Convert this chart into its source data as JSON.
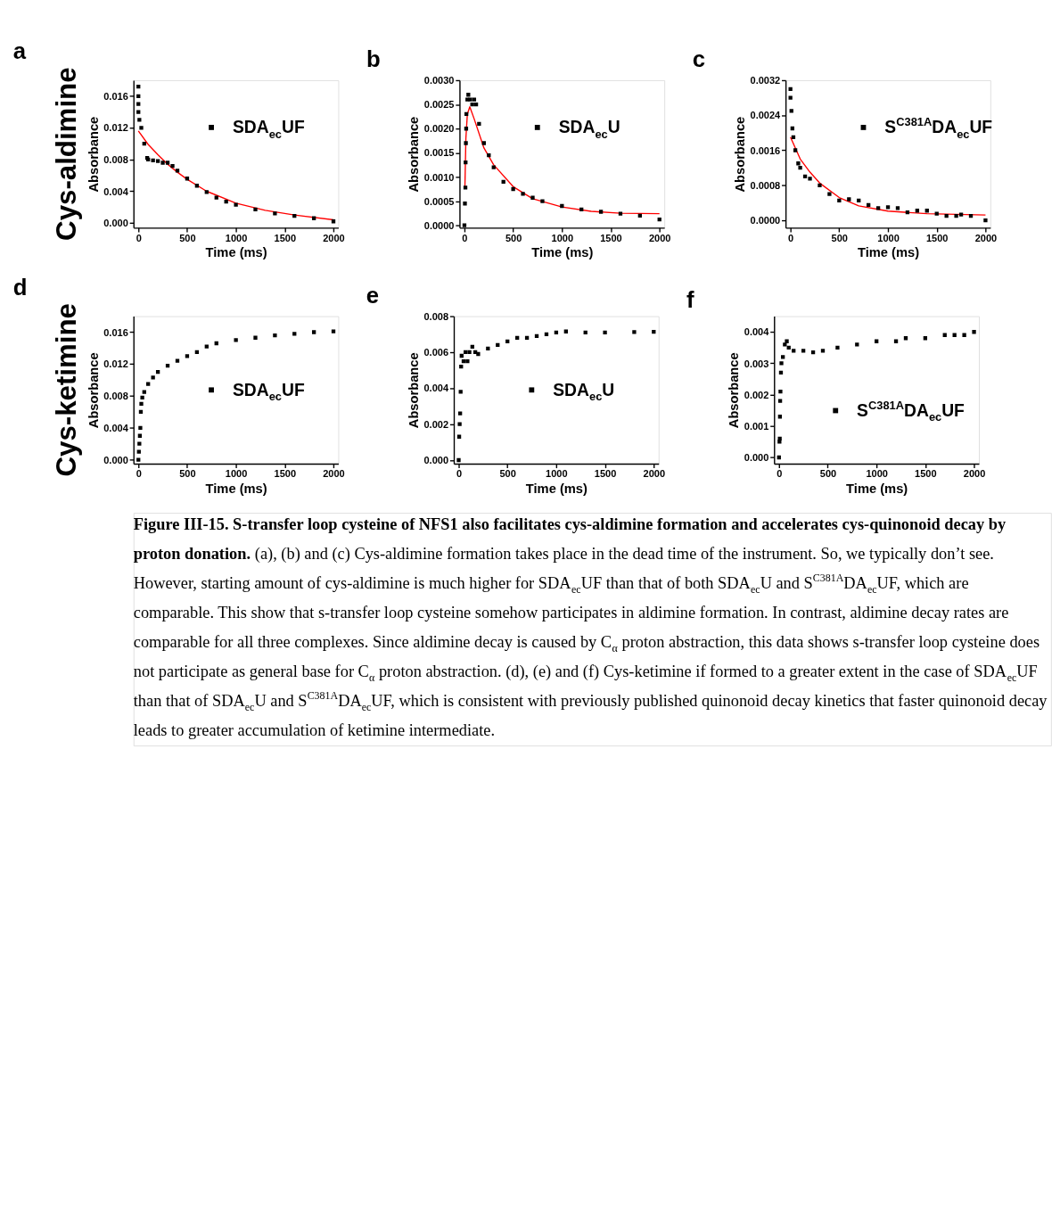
{
  "chart_data": [
    {
      "type": "scatter",
      "title": "a",
      "xlabel": "Time (ms)",
      "ylabel": "Absorbance",
      "xlim": [
        -50,
        2050
      ],
      "ylim": [
        -0.0006,
        0.018
      ],
      "xticks": [
        0,
        500,
        1000,
        1500,
        2000
      ],
      "yticks": [
        {
          "value": 0,
          "label": "0.000"
        },
        {
          "value": 0.004,
          "label": "0.004"
        },
        {
          "value": 0.008,
          "label": "0.008"
        },
        {
          "value": 0.012,
          "label": "0.012"
        },
        {
          "value": 0.016,
          "label": "0.016"
        }
      ],
      "grid": false,
      "legend": "top right",
      "marker": "square",
      "annotations": [
        "Cys-aldimine"
      ],
      "series": [
        {
          "name": "SDA$_{ec}$UF",
          "color": "#000000",
          "x": [
            0,
            0,
            0,
            0,
            10,
            30,
            60,
            90,
            100,
            150,
            200,
            250,
            300,
            350,
            400,
            500,
            600,
            700,
            800,
            900,
            1000,
            1200,
            1400,
            1600,
            1800,
            2000
          ],
          "values": [
            0.0172,
            0.016,
            0.015,
            0.014,
            0.013,
            0.012,
            0.01,
            0.0082,
            0.008,
            0.0079,
            0.0078,
            0.0076,
            0.0076,
            0.0072,
            0.0066,
            0.0056,
            0.0047,
            0.0039,
            0.0032,
            0.0027,
            0.0023,
            0.0017,
            0.0012,
            0.0009,
            0.0006,
            0.0002
          ]
        },
        {
          "type": "line",
          "marker": "none",
          "color": "#ff0000",
          "x": [
            0,
            100,
            200,
            300,
            400,
            500,
            700,
            1000,
            1300,
            1600,
            2000
          ],
          "values": [
            0.0116,
            0.0099,
            0.0086,
            0.0074,
            0.0064,
            0.0055,
            0.004,
            0.0025,
            0.0016,
            0.001,
            0.0004
          ]
        }
      ]
    },
    {
      "type": "scatter",
      "title": "b",
      "xlabel": "Time (ms)",
      "ylabel": "Absorbance",
      "xlim": [
        -50,
        2050
      ],
      "ylim": [
        -5e-05,
        0.003
      ],
      "xticks": [
        0,
        500,
        1000,
        1500,
        2000
      ],
      "yticks": [
        {
          "value": 0,
          "label": "0.0000"
        },
        {
          "value": 0.0005,
          "label": "0.0005"
        },
        {
          "value": 0.001,
          "label": "0.0010"
        },
        {
          "value": 0.0015,
          "label": "0.0015"
        },
        {
          "value": 0.002,
          "label": "0.0020"
        },
        {
          "value": 0.0025,
          "label": "0.0025"
        },
        {
          "value": 0.003,
          "label": "0.0030"
        }
      ],
      "grid": false,
      "legend": "top right",
      "marker": "square",
      "series": [
        {
          "name": "SDA$_{ec}$U",
          "color": "#000000",
          "x": [
            0,
            5,
            10,
            12,
            15,
            18,
            20,
            30,
            40,
            60,
            80,
            100,
            120,
            150,
            200,
            250,
            300,
            400,
            500,
            600,
            700,
            800,
            1000,
            1200,
            1400,
            1600,
            1800,
            2000
          ],
          "values": [
            0,
            0.00045,
            0.00078,
            0.0013,
            0.0017,
            0.002,
            0.0023,
            0.0026,
            0.0027,
            0.0026,
            0.0025,
            0.0026,
            0.0025,
            0.0021,
            0.0017,
            0.00145,
            0.0012,
            0.0009,
            0.00075,
            0.00065,
            0.00057,
            0.0005,
            0.0004,
            0.00033,
            0.00028,
            0.00024,
            0.0002,
            0.00012
          ]
        },
        {
          "type": "line",
          "marker": "none",
          "color": "#ff0000",
          "x": [
            5,
            15,
            30,
            55,
            100,
            200,
            300,
            500,
            700,
            1000,
            1300,
            1600,
            2000
          ],
          "values": [
            0.0008,
            0.0018,
            0.0023,
            0.00245,
            0.0022,
            0.0016,
            0.00125,
            0.0008,
            0.00055,
            0.00038,
            0.00029,
            0.00025,
            0.00024
          ]
        }
      ]
    },
    {
      "type": "scatter",
      "title": "c",
      "xlabel": "Time (ms)",
      "ylabel": "Absorbance",
      "xlim": [
        -50,
        2050
      ],
      "ylim": [
        -0.00017,
        0.0032
      ],
      "xticks": [
        0,
        500,
        1000,
        1500,
        2000
      ],
      "yticks": [
        {
          "value": 0,
          "label": "0.0000"
        },
        {
          "value": 0.0008,
          "label": "0.0008"
        },
        {
          "value": 0.0016,
          "label": "0.0016"
        },
        {
          "value": 0.0024,
          "label": "0.0024"
        },
        {
          "value": 0.0032,
          "label": "0.0032"
        }
      ],
      "grid": false,
      "legend": "top right",
      "marker": "square",
      "series": [
        {
          "name": "S$^{C381A}$DA$_{ec}$UF",
          "color": "#000000",
          "x": [
            0,
            0,
            10,
            20,
            30,
            50,
            80,
            100,
            150,
            200,
            300,
            400,
            500,
            600,
            700,
            800,
            900,
            1000,
            1100,
            1200,
            1300,
            1400,
            1500,
            1600,
            1700,
            1750,
            1850,
            2000
          ],
          "values": [
            0.003,
            0.0028,
            0.0025,
            0.0021,
            0.0019,
            0.0016,
            0.0013,
            0.0012,
            0.001,
            0.00095,
            0.0008,
            0.0006,
            0.00045,
            0.00048,
            0.00045,
            0.00035,
            0.00028,
            0.0003,
            0.00028,
            0.00018,
            0.00022,
            0.00022,
            0.00015,
            0.0001,
            0.0001,
            0.00013,
            0.0001,
            0
          ]
        },
        {
          "type": "line",
          "marker": "none",
          "color": "#ff0000",
          "x": [
            0,
            100,
            200,
            300,
            500,
            700,
            1000,
            1400,
            2000
          ],
          "values": [
            0.0019,
            0.0014,
            0.0011,
            0.00085,
            0.00052,
            0.00033,
            0.00021,
            0.00015,
            0.00012
          ]
        }
      ]
    },
    {
      "type": "scatter",
      "title": "d",
      "xlabel": "Time (ms)",
      "ylabel": "Absorbance",
      "xlim": [
        -50,
        2050
      ],
      "ylim": [
        -0.0005,
        0.018
      ],
      "xticks": [
        0,
        500,
        1000,
        1500,
        2000
      ],
      "yticks": [
        {
          "value": 0,
          "label": "0.000"
        },
        {
          "value": 0.004,
          "label": "0.004"
        },
        {
          "value": 0.008,
          "label": "0.008"
        },
        {
          "value": 0.012,
          "label": "0.012"
        },
        {
          "value": 0.016,
          "label": "0.016"
        }
      ],
      "grid": false,
      "legend": "right",
      "marker": "square",
      "annotations": [
        "Cys-ketimine"
      ],
      "series": [
        {
          "name": "SDA$_{ec}$UF",
          "color": "#000000",
          "x": [
            0,
            5,
            10,
            15,
            20,
            25,
            30,
            40,
            60,
            100,
            150,
            200,
            300,
            400,
            500,
            600,
            700,
            800,
            1000,
            1200,
            1400,
            1600,
            1800,
            2000
          ],
          "values": [
            0,
            0.001,
            0.002,
            0.003,
            0.004,
            0.006,
            0.007,
            0.0078,
            0.0085,
            0.0095,
            0.0103,
            0.011,
            0.0118,
            0.0124,
            0.013,
            0.0135,
            0.0142,
            0.0146,
            0.015,
            0.0153,
            0.0156,
            0.0158,
            0.016,
            0.0161
          ]
        }
      ]
    },
    {
      "type": "scatter",
      "title": "e",
      "xlabel": "Time (ms)",
      "ylabel": "Absorbance",
      "xlim": [
        -50,
        2050
      ],
      "ylim": [
        -0.0002,
        0.008
      ],
      "xticks": [
        0,
        500,
        1000,
        1500,
        2000
      ],
      "yticks": [
        {
          "value": 0,
          "label": "0.000"
        },
        {
          "value": 0.002,
          "label": "0.002"
        },
        {
          "value": 0.004,
          "label": "0.004"
        },
        {
          "value": 0.006,
          "label": "0.006"
        },
        {
          "value": 0.008,
          "label": "0.008"
        }
      ],
      "grid": false,
      "legend": "right",
      "marker": "square",
      "series": [
        {
          "name": "SDA$_{ec}$U",
          "color": "#000000",
          "x": [
            0,
            5,
            10,
            15,
            20,
            25,
            30,
            50,
            70,
            90,
            110,
            140,
            170,
            200,
            300,
            400,
            500,
            600,
            700,
            800,
            900,
            1000,
            1100,
            1300,
            1500,
            1800,
            2000
          ],
          "values": [
            0,
            0.0013,
            0.002,
            0.0026,
            0.0038,
            0.0052,
            0.0058,
            0.0055,
            0.006,
            0.0055,
            0.006,
            0.0063,
            0.006,
            0.0059,
            0.0062,
            0.0064,
            0.0066,
            0.0068,
            0.0068,
            0.0069,
            0.007,
            0.0071,
            0.00715,
            0.0071,
            0.0071,
            0.00712,
            0.00713
          ]
        }
      ]
    },
    {
      "type": "scatter",
      "title": "f",
      "xlabel": "Time (ms)",
      "ylabel": "Absorbance",
      "xlim": [
        -50,
        2050
      ],
      "ylim": [
        -0.0002,
        0.0045
      ],
      "xticks": [
        0,
        500,
        1000,
        1500,
        2000
      ],
      "yticks": [
        {
          "value": 0,
          "label": "0.000"
        },
        {
          "value": 0.001,
          "label": "0.001"
        },
        {
          "value": 0.002,
          "label": "0.002"
        },
        {
          "value": 0.003,
          "label": "0.003"
        },
        {
          "value": 0.004,
          "label": "0.004"
        }
      ],
      "grid": false,
      "legend": "bottom right",
      "marker": "square",
      "annotations": [
        "Figure III-15. S-transfer loop cysteine of NFS1 also facilitates cys-aldimine formation and accelerates cys-quinonoid decay by proton donation.",
        "(a), (b) and (c) Cys-aldimine formation takes place in the dead time of the instrument. So, we typically don’t see. However, starting amount of cys-aldimine is much higher for SDA$_{ec}$UF than that of both SDA$_{ec}$U and S$^{C381A}$DA$_{ec}$UF, which are comparable. This show that s-transfer loop cysteine somehow participates in aldimine formation. In contrast, aldimine decay rates are comparable for all three complexes. Since aldimine decay is caused by C$_{α}$ proton abstraction, this data shows s-transfer loop cysteine does not participate as general base for C$_{α}$ proton abstraction. (d), (e) and (f) Cys-ketimine if formed to a greater extent in the case of SDA$_{ec}$UF than that of SDA$_{ec}$U and S$^{C381A}$DA$_{ec}$UF, which is consistent with previously published quinonoid decay kinetics that faster quinonoid decay leads to greater accumulation of ketimine intermediate."
      ],
      "series": [
        {
          "name": "S$^{C381A}$DA$_{ec}$UF",
          "color": "#000000",
          "x": [
            0,
            5,
            8,
            10,
            12,
            15,
            20,
            25,
            40,
            60,
            80,
            100,
            150,
            250,
            350,
            450,
            600,
            800,
            1000,
            1200,
            1300,
            1500,
            1700,
            1800,
            1900,
            2000
          ],
          "values": [
            0,
            0.0005,
            0.0006,
            0.0013,
            0.0018,
            0.0021,
            0.0027,
            0.003,
            0.0032,
            0.0036,
            0.0037,
            0.0035,
            0.0034,
            0.0034,
            0.00335,
            0.0034,
            0.0035,
            0.0036,
            0.0037,
            0.0037,
            0.0038,
            0.0038,
            0.0039,
            0.0039,
            0.0039,
            0.004
          ]
        }
      ]
    }
  ]
}
